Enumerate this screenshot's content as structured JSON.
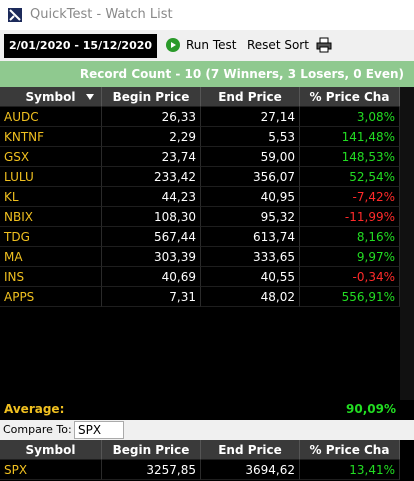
{
  "window": {
    "title": "QuickTest - Watch List"
  },
  "toolbar": {
    "date_range": "2/01/2020 - 15/12/2020",
    "run_button": "Run Test",
    "reset_button": "Reset Sort"
  },
  "summary": "Record Count - 10 (7 Winners, 3 Losers, 0 Even)",
  "table": {
    "columns": [
      "Symbol",
      "Begin Price",
      "End Price",
      "% Price Cha"
    ],
    "rows": [
      [
        "AUDC",
        "26,33",
        "27,14",
        "3,08%"
      ],
      [
        "KNTNF",
        "2,29",
        "5,53",
        "141,48%"
      ],
      [
        "GSX",
        "23,74",
        "59,00",
        "148,53%"
      ],
      [
        "LULU",
        "233,42",
        "356,07",
        "52,54%"
      ],
      [
        "KL",
        "44,23",
        "40,95",
        "-7,42%"
      ],
      [
        "NBIX",
        "108,30",
        "95,32",
        "-11,99%"
      ],
      [
        "TDG",
        "567,44",
        "613,74",
        "8,16%"
      ],
      [
        "MA",
        "303,39",
        "333,65",
        "9,97%"
      ],
      [
        "INS",
        "40,69",
        "40,55",
        "-0,34%"
      ],
      [
        "APPS",
        "7,31",
        "48,02",
        "556,91%"
      ]
    ]
  },
  "average": {
    "label": "Average:",
    "value": "90,09%"
  },
  "compare": {
    "label": "Compare To:",
    "symbol": "SPX",
    "columns": [
      "Symbol",
      "Begin Price",
      "End Price",
      "% Price Cha"
    ],
    "rows": [
      [
        "SPX",
        "3257,85",
        "3694,62",
        "13,41%"
      ]
    ]
  }
}
